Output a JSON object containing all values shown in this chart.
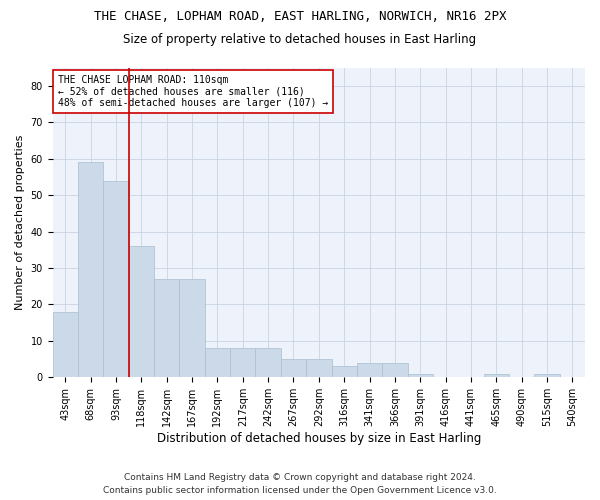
{
  "title": "THE CHASE, LOPHAM ROAD, EAST HARLING, NORWICH, NR16 2PX",
  "subtitle": "Size of property relative to detached houses in East Harling",
  "xlabel": "Distribution of detached houses by size in East Harling",
  "ylabel": "Number of detached properties",
  "footer_line1": "Contains HM Land Registry data © Crown copyright and database right 2024.",
  "footer_line2": "Contains public sector information licensed under the Open Government Licence v3.0.",
  "bin_labels": [
    "43sqm",
    "68sqm",
    "93sqm",
    "118sqm",
    "142sqm",
    "167sqm",
    "192sqm",
    "217sqm",
    "242sqm",
    "267sqm",
    "292sqm",
    "316sqm",
    "341sqm",
    "366sqm",
    "391sqm",
    "416sqm",
    "441sqm",
    "465sqm",
    "490sqm",
    "515sqm",
    "540sqm"
  ],
  "bar_heights": [
    18,
    59,
    54,
    36,
    27,
    27,
    8,
    8,
    8,
    5,
    5,
    3,
    4,
    4,
    1,
    0,
    0,
    1,
    0,
    1,
    0
  ],
  "bar_color": "#ccd9e8",
  "bar_edgecolor": "#a8bfd0",
  "vline_x": 3,
  "vline_color": "#cc0000",
  "annotation_text": "THE CHASE LOPHAM ROAD: 110sqm\n← 52% of detached houses are smaller (116)\n48% of semi-detached houses are larger (107) →",
  "annotation_box_color": "#ffffff",
  "annotation_box_edgecolor": "#cc0000",
  "ylim": [
    0,
    85
  ],
  "yticks": [
    0,
    10,
    20,
    30,
    40,
    50,
    60,
    70,
    80
  ],
  "grid_color": "#c8d4e4",
  "background_color": "#edf2fb",
  "title_fontsize": 9,
  "subtitle_fontsize": 8.5,
  "xlabel_fontsize": 8.5,
  "ylabel_fontsize": 8,
  "tick_fontsize": 7,
  "annotation_fontsize": 7,
  "footer_fontsize": 6.5
}
